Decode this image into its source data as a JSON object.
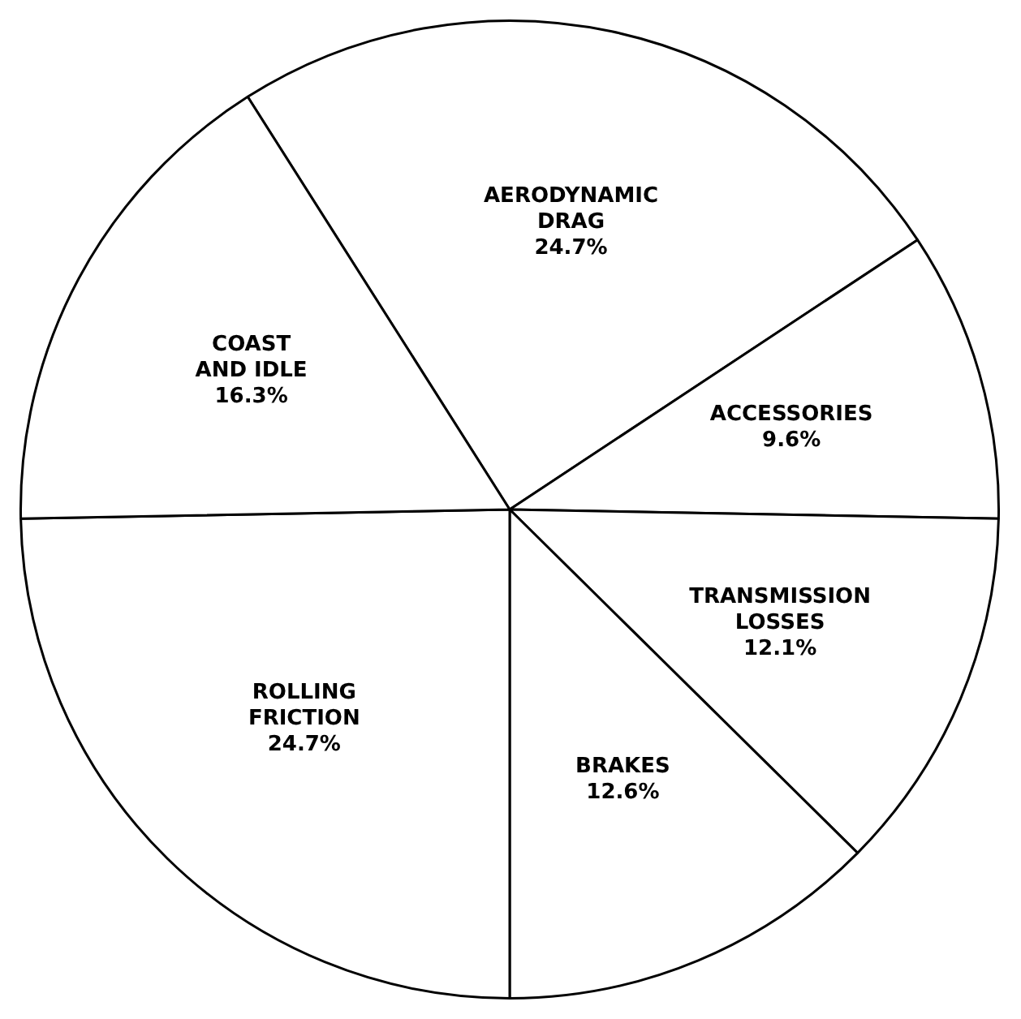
{
  "chart_data": {
    "type": "pie",
    "categories": [
      "AERODYNAMIC DRAG",
      "ACCESSORIES",
      "TRANSMISSION LOSSES",
      "BRAKES",
      "ROLLING FRICTION",
      "COAST AND IDLE"
    ],
    "values": [
      24.7,
      9.6,
      12.1,
      12.6,
      24.7,
      16.3
    ],
    "colors": [
      "#ffffff",
      "#ffffff",
      "#ffffff",
      "#ffffff",
      "#ffffff",
      "#ffffff"
    ],
    "value_labels": [
      "24.7%",
      "9.6%",
      "12.1%",
      "12.6%",
      "24.7%",
      "16.3%"
    ],
    "legend": false
  }
}
